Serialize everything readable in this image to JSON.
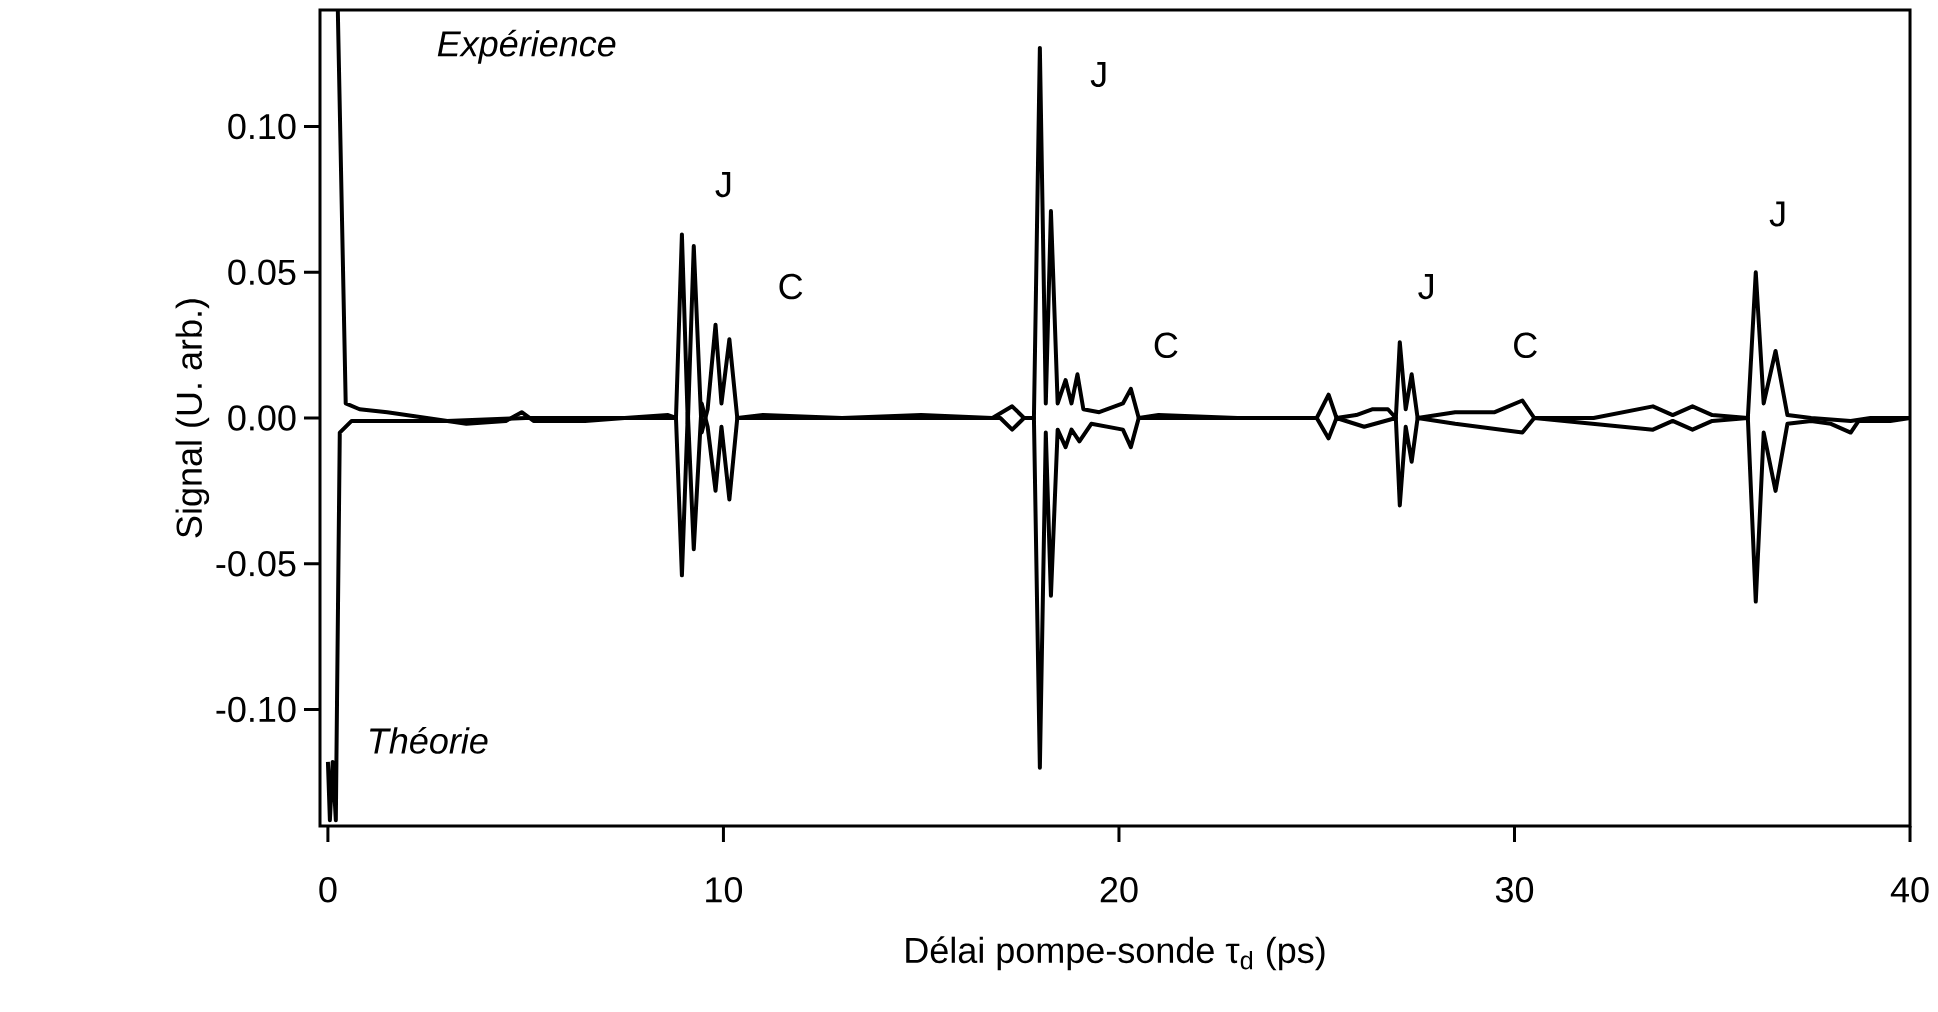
{
  "chart_data": {
    "type": "line",
    "xlabel": "Délai pompe-sonde τ$_{d}$ (ps)",
    "ylabel": "Signal (U. arb.)",
    "xlim": [
      -0.2,
      40
    ],
    "ylim": [
      -0.14,
      0.14
    ],
    "xticks": [
      0,
      10,
      20,
      30,
      40
    ],
    "yticks": [
      {
        "value": -0.1,
        "label": "-0.10"
      },
      {
        "value": -0.05,
        "label": "-0.05"
      },
      {
        "value": 0,
        "label": "0.00"
      },
      {
        "value": 0.05,
        "label": "0.05"
      },
      {
        "value": 0.1,
        "label": "0.10"
      }
    ],
    "legend": false,
    "grid": false,
    "marker": "none",
    "line_style": "solid",
    "series": [
      {
        "name": "Expérience",
        "color": "#000000",
        "x": [
          0.25,
          0.45,
          0.8,
          1.5,
          2.5,
          3.5,
          4.5,
          4.9,
          5.2,
          6.5,
          7.5,
          8.6,
          8.8,
          8.95,
          9.1,
          9.25,
          9.45,
          9.6,
          9.8,
          9.95,
          10.15,
          10.35,
          11,
          13,
          15,
          16.8,
          17.3,
          17.6,
          17.85,
          18.0,
          18.15,
          18.28,
          18.45,
          18.65,
          18.8,
          18.95,
          19.1,
          19.5,
          20.1,
          20.3,
          20.5,
          21,
          23,
          25,
          25.3,
          25.5,
          26,
          26.4,
          26.8,
          27.0,
          27.1,
          27.25,
          27.4,
          27.55,
          28.5,
          29.5,
          30.2,
          30.5,
          32,
          33.5,
          34,
          34.5,
          35,
          35.9,
          36.1,
          36.3,
          36.6,
          36.9,
          37.5,
          38.5,
          39,
          40
        ],
        "values": [
          0.14,
          0.005,
          0.003,
          0.002,
          0.0,
          -0.002,
          -0.001,
          0.002,
          -0.001,
          -0.001,
          0.0,
          0.001,
          0.0,
          0.063,
          -0.002,
          0.059,
          -0.005,
          0.003,
          0.032,
          0.005,
          0.027,
          0.0,
          0.001,
          0.0,
          0.001,
          0.0,
          0.004,
          0.0,
          0.0,
          0.127,
          0.005,
          0.071,
          0.005,
          0.013,
          0.005,
          0.015,
          0.003,
          0.002,
          0.005,
          0.01,
          0.0,
          0.001,
          0.0,
          0.0,
          0.008,
          0.0,
          0.001,
          0.003,
          0.003,
          0.0,
          0.026,
          0.003,
          0.015,
          0.0,
          0.002,
          0.002,
          0.006,
          0.0,
          0.0,
          0.004,
          0.001,
          0.004,
          0.001,
          0.0,
          0.05,
          0.005,
          0.023,
          0.001,
          0.0,
          -0.001,
          0.0,
          0.0
        ]
      },
      {
        "name": "Théorie",
        "color": "#000000",
        "x": [
          0,
          0.05,
          0.12,
          0.2,
          0.3,
          0.6,
          3,
          5,
          8.8,
          8.95,
          9.1,
          9.25,
          9.45,
          9.6,
          9.8,
          9.95,
          10.15,
          10.35,
          12,
          17,
          17.3,
          17.6,
          17.85,
          18.0,
          18.15,
          18.28,
          18.45,
          18.65,
          18.8,
          19.0,
          19.3,
          20.1,
          20.3,
          20.5,
          22,
          25,
          25.3,
          25.5,
          26.2,
          27.0,
          27.1,
          27.25,
          27.4,
          27.55,
          28.5,
          30.2,
          30.5,
          33.5,
          34,
          34.5,
          35,
          35.9,
          36.1,
          36.3,
          36.6,
          36.9,
          37.5,
          38,
          38.5,
          38.7,
          39.5,
          40
        ],
        "values": [
          -0.118,
          -0.138,
          -0.118,
          -0.138,
          -0.005,
          -0.001,
          -0.001,
          0.0,
          0.0,
          -0.054,
          0.002,
          -0.045,
          0.005,
          -0.003,
          -0.025,
          -0.003,
          -0.028,
          0.0,
          0.0,
          0.0,
          -0.004,
          0.0,
          0.0,
          -0.12,
          -0.005,
          -0.061,
          -0.004,
          -0.01,
          -0.004,
          -0.008,
          -0.002,
          -0.004,
          -0.01,
          0.0,
          0.0,
          0.0,
          -0.007,
          0.0,
          -0.003,
          0.0,
          -0.03,
          -0.003,
          -0.015,
          0.0,
          -0.002,
          -0.005,
          0.0,
          -0.004,
          -0.001,
          -0.004,
          -0.001,
          0.0,
          -0.063,
          -0.005,
          -0.025,
          -0.002,
          -0.001,
          -0.002,
          -0.005,
          -0.001,
          -0.001,
          0.0
        ]
      }
    ],
    "annotations": [
      "J",
      "C",
      "J",
      "C",
      "J",
      "C",
      "J"
    ]
  }
}
